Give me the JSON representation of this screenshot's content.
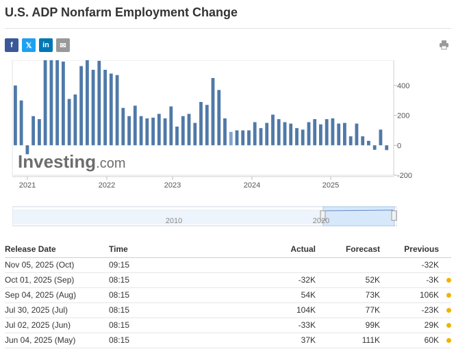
{
  "page": {
    "title": "U.S. ADP Nonfarm Employment Change"
  },
  "share": {
    "facebook": "f",
    "twitter": "𝕏",
    "linkedin": "in",
    "email": "✉"
  },
  "chart_data": {
    "type": "bar",
    "watermark": "Investing.com",
    "y_ticks": [
      "400",
      "200",
      "0",
      "-200"
    ],
    "ylim": [
      -200,
      560
    ],
    "x_labels": [
      "2021",
      "2022",
      "2023",
      "2024",
      "2025"
    ],
    "colors": {
      "positive": "#4f79a8",
      "negative": "#4f79a8",
      "highlight": "#7fa2cf"
    },
    "values": [
      400,
      300,
      -60,
      195,
      175,
      570,
      580,
      590,
      560,
      310,
      340,
      530,
      580,
      505,
      565,
      505,
      480,
      470,
      250,
      195,
      265,
      195,
      180,
      185,
      210,
      180,
      260,
      125,
      195,
      210,
      150,
      290,
      270,
      450,
      370,
      180,
      90,
      100,
      100,
      100,
      155,
      115,
      150,
      205,
      175,
      155,
      145,
      115,
      105,
      155,
      175,
      140,
      175,
      180,
      145,
      150,
      60,
      145,
      60,
      30,
      -30,
      105,
      -32
    ],
    "highlight_index": 36,
    "navigator": {
      "labels": [
        "2010",
        "2020"
      ]
    }
  },
  "table": {
    "headers": {
      "date": "Release Date",
      "time": "Time",
      "actual": "Actual",
      "forecast": "Forecast",
      "previous": "Previous"
    },
    "rows": [
      {
        "date": "Nov 05, 2025 (Oct)",
        "time": "09:15",
        "actual": "",
        "actual_class": "",
        "forecast": "",
        "previous": "-32K",
        "previous_class": "",
        "dot": false
      },
      {
        "date": "Oct 01, 2025 (Sep)",
        "time": "08:15",
        "actual": "-32K",
        "actual_class": "neg",
        "forecast": "52K",
        "previous": "-3K",
        "previous_class": "neg",
        "dot": true
      },
      {
        "date": "Sep 04, 2025 (Aug)",
        "time": "08:15",
        "actual": "54K",
        "actual_class": "neg",
        "forecast": "73K",
        "previous": "106K",
        "previous_class": "pos",
        "dot": true
      },
      {
        "date": "Jul 30, 2025 (Jul)",
        "time": "08:15",
        "actual": "104K",
        "actual_class": "pos",
        "forecast": "77K",
        "previous": "-23K",
        "previous_class": "pos",
        "dot": true
      },
      {
        "date": "Jul 02, 2025 (Jun)",
        "time": "08:15",
        "actual": "-33K",
        "actual_class": "neg",
        "forecast": "99K",
        "previous": "29K",
        "previous_class": "neg",
        "dot": true
      },
      {
        "date": "Jun 04, 2025 (May)",
        "time": "08:15",
        "actual": "37K",
        "actual_class": "neg",
        "forecast": "111K",
        "previous": "60K",
        "previous_class": "neg",
        "dot": true
      }
    ]
  }
}
